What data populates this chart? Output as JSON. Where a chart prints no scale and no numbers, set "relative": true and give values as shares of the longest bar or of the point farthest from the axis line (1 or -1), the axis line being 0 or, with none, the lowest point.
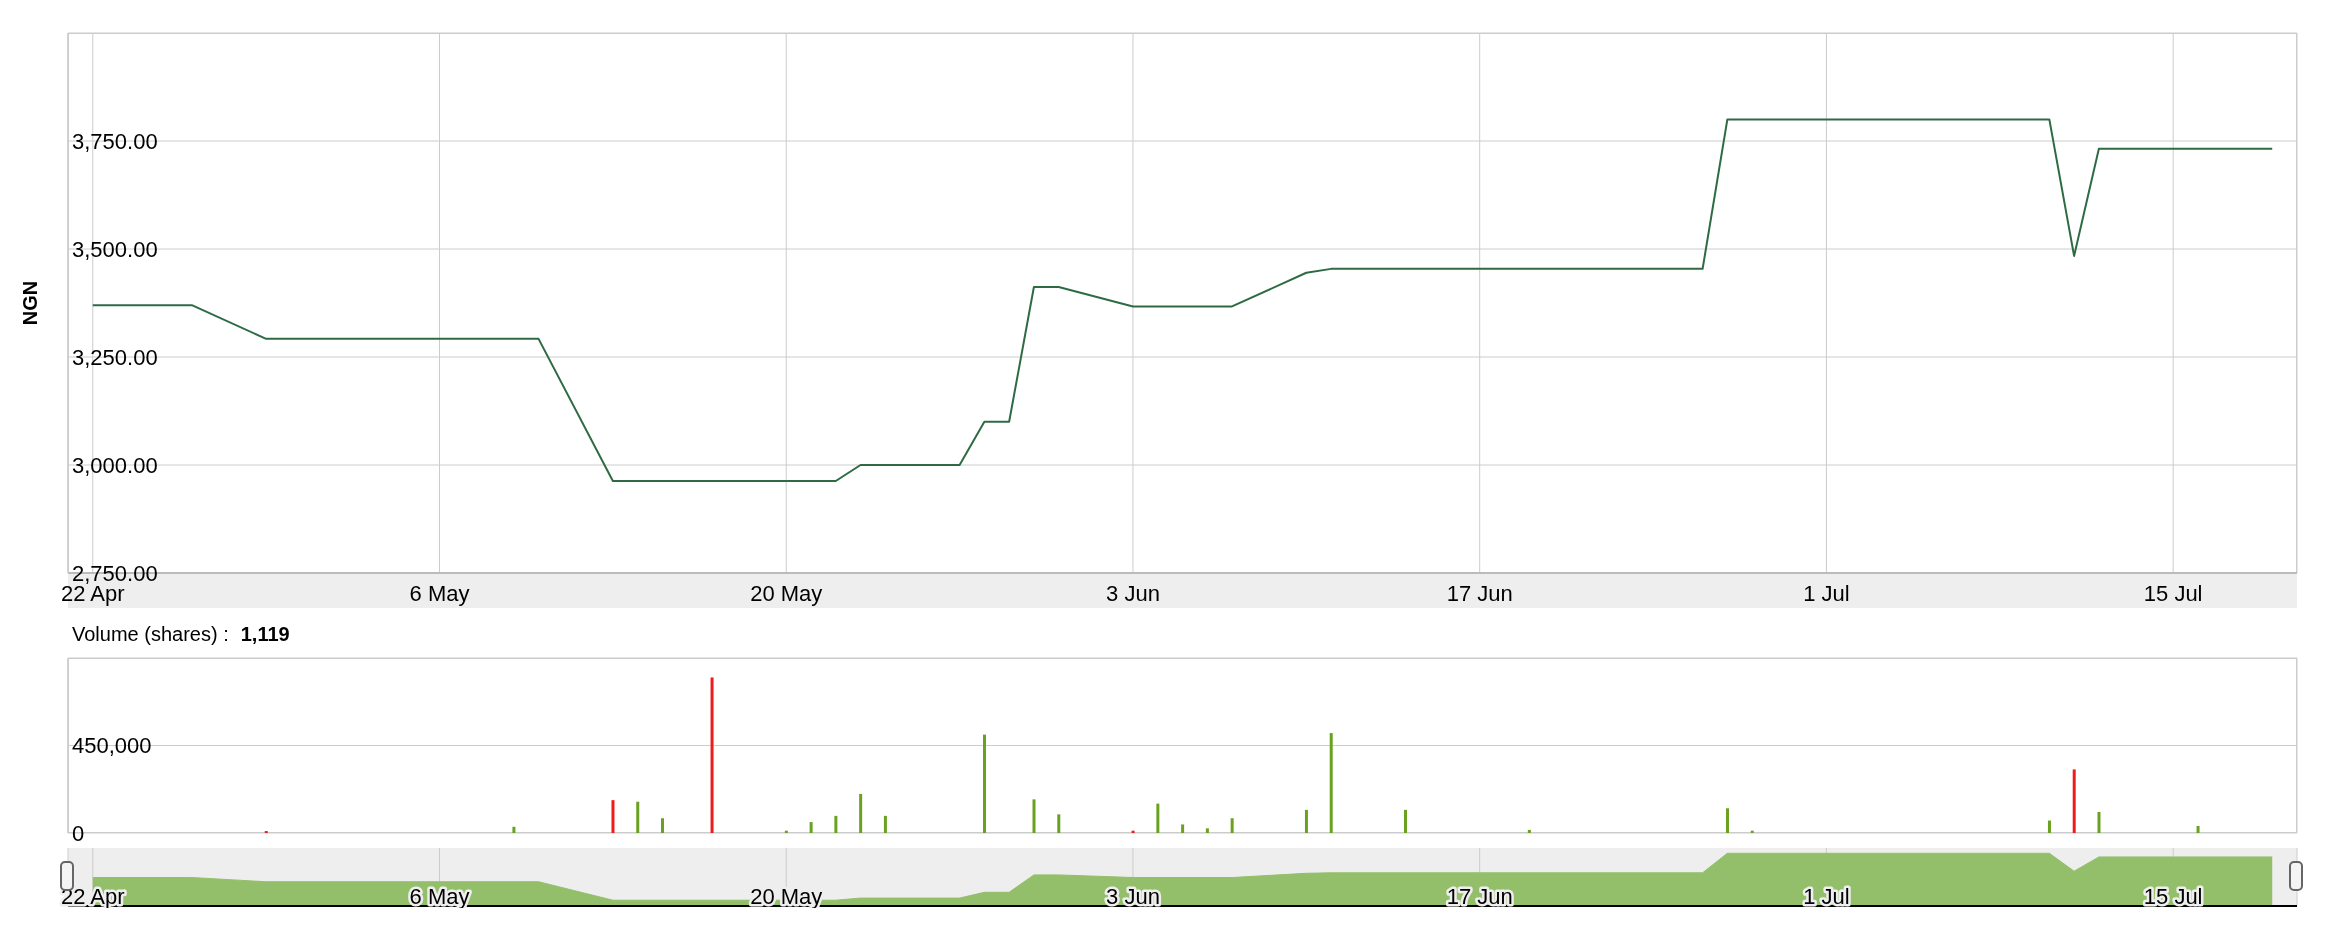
{
  "chart_data": [
    {
      "type": "line",
      "ylabel": "NGN",
      "color": "#2e6b45",
      "grid": true,
      "x": [
        "--04-22",
        "--04-26",
        "--04-29",
        "--05-10",
        "--05-13",
        "--05-22",
        "--05-23",
        "--05-27",
        "--05-28",
        "--05-29",
        "--05-30",
        "--05-31",
        "--06-03",
        "--06-07",
        "--06-10",
        "--06-11",
        "--06-26",
        "--06-27",
        "--07-10",
        "--07-11",
        "--07-12",
        "--07-19"
      ],
      "values": [
        3370,
        3370,
        3292,
        3292,
        2963,
        2963,
        3000,
        3000,
        3100,
        3100,
        3412,
        3412,
        3367,
        3367,
        3445,
        3454,
        3454,
        3800,
        3800,
        3484,
        3732,
        3732
      ],
      "xlim": [
        "--04-21",
        "--07-20"
      ],
      "xticks": [
        {
          "value": "--04-22",
          "label": "22 Apr"
        },
        {
          "value": "--05-06",
          "label": "6 May"
        },
        {
          "value": "--05-20",
          "label": "20 May"
        },
        {
          "value": "--06-03",
          "label": "3 Jun"
        },
        {
          "value": "--06-17",
          "label": "17 Jun"
        },
        {
          "value": "--07-01",
          "label": "1 Jul"
        },
        {
          "value": "--07-15",
          "label": "15 Jul"
        }
      ],
      "ylim": [
        2750,
        4000
      ],
      "yticks": [
        {
          "value": 2750,
          "label": "2,750.00"
        },
        {
          "value": 3000,
          "label": "3,000.00"
        },
        {
          "value": 3250,
          "label": "3,250.00"
        },
        {
          "value": 3500,
          "label": "3,500.00"
        },
        {
          "value": 3750,
          "label": "3,750.00"
        }
      ]
    },
    {
      "type": "bar",
      "title": "Volume (shares) :",
      "annotations": [
        "1,119"
      ],
      "grid": true,
      "tick_labels": "y",
      "x": [
        "--04-29",
        "--05-09",
        "--05-13",
        "--05-14",
        "--05-15",
        "--05-17",
        "--05-20",
        "--05-21",
        "--05-22",
        "--05-23",
        "--05-24",
        "--05-28",
        "--05-30",
        "--05-31",
        "--06-03",
        "--06-04",
        "--06-05",
        "--06-06",
        "--06-07",
        "--06-10",
        "--06-11",
        "--06-14",
        "--06-19",
        "--06-27",
        "--06-28",
        "--07-10",
        "--07-11",
        "--07-12",
        "--07-16"
      ],
      "values": [
        10000,
        32000,
        169000,
        161000,
        76000,
        800000,
        12000,
        56000,
        88000,
        201000,
        88000,
        506000,
        173000,
        96000,
        12000,
        151000,
        44000,
        24000,
        76000,
        119000,
        514000,
        119000,
        16000,
        127000,
        12000,
        64000,
        327000,
        108000,
        36000
      ],
      "colors": [
        "#ee1c1c",
        "#6aa121",
        "#ee1c1c",
        "#6aa121",
        "#6aa121",
        "#ee1c1c",
        "#6aa121",
        "#6aa121",
        "#6aa121",
        "#6aa121",
        "#6aa121",
        "#6aa121",
        "#6aa121",
        "#6aa121",
        "#ee1c1c",
        "#6aa121",
        "#6aa121",
        "#6aa121",
        "#6aa121",
        "#6aa121",
        "#6aa121",
        "#6aa121",
        "#6aa121",
        "#6aa121",
        "#6aa121",
        "#6aa121",
        "#ee1c1c",
        "#6aa121",
        "#6aa121"
      ],
      "xlim": [
        "--04-21",
        "--07-20"
      ],
      "xticks": [
        {
          "value": "--04-22",
          "label": null
        },
        {
          "value": "--05-06",
          "label": null
        },
        {
          "value": "--05-20",
          "label": null
        },
        {
          "value": "--06-03",
          "label": null
        },
        {
          "value": "--06-17",
          "label": null
        },
        {
          "value": "--07-01",
          "label": null
        },
        {
          "value": "--07-15",
          "label": null
        }
      ],
      "ylim": [
        0,
        900000
      ],
      "yticks": [
        {
          "value": 0,
          "label": "0"
        },
        {
          "value": 450000,
          "label": "450,000"
        }
      ]
    },
    {
      "type": "area",
      "relative": true,
      "color": "#93bf6a",
      "grid": "x",
      "x": [
        "--04-22",
        "--04-26",
        "--04-29",
        "--05-10",
        "--05-13",
        "--05-22",
        "--05-23",
        "--05-27",
        "--05-28",
        "--05-29",
        "--05-30",
        "--05-31",
        "--06-03",
        "--06-07",
        "--06-10",
        "--06-11",
        "--06-26",
        "--06-27",
        "--07-10",
        "--07-11",
        "--07-12",
        "--07-19"
      ],
      "values": [
        0.54,
        0.54,
        0.46,
        0.46,
        0.11,
        0.11,
        0.15,
        0.15,
        0.26,
        0.26,
        0.59,
        0.59,
        0.54,
        0.54,
        0.62,
        0.63,
        0.63,
        1,
        1,
        0.66,
        0.93,
        0.93
      ],
      "xlim": [
        "--04-21",
        "--07-20"
      ],
      "xticks": [
        {
          "value": "--04-22",
          "label": "22 Apr"
        },
        {
          "value": "--05-06",
          "label": "6 May"
        },
        {
          "value": "--05-20",
          "label": "20 May"
        },
        {
          "value": "--06-03",
          "label": "3 Jun"
        },
        {
          "value": "--06-17",
          "label": "17 Jun"
        },
        {
          "value": "--07-01",
          "label": "1 Jul"
        },
        {
          "value": "--07-15",
          "label": "15 Jul"
        }
      ]
    }
  ]
}
